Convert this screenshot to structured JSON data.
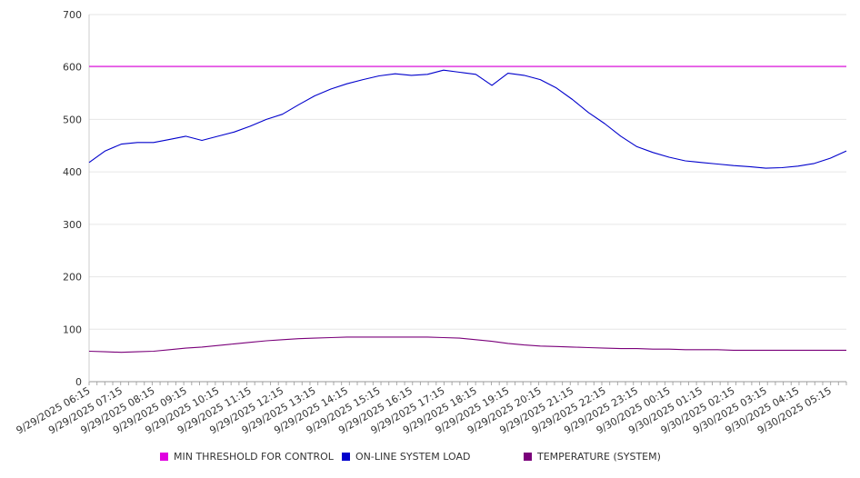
{
  "chart_data": {
    "type": "line",
    "ylim": [
      0,
      700
    ],
    "y_ticks": [
      0,
      100,
      200,
      300,
      400,
      500,
      600,
      700
    ],
    "grid": "horizontal",
    "legend_position": "bottom",
    "x_tick_labels": [
      "9/29/2025 06:15",
      "9/29/2025 07:15",
      "9/29/2025 08:15",
      "9/29/2025 09:15",
      "9/29/2025 10:15",
      "9/29/2025 11:15",
      "9/29/2025 12:15",
      "9/29/2025 13:15",
      "9/29/2025 14:15",
      "9/29/2025 15:15",
      "9/29/2025 16:15",
      "9/29/2025 17:15",
      "9/29/2025 18:15",
      "9/29/2025 19:15",
      "9/29/2025 20:15",
      "9/29/2025 21:15",
      "9/29/2025 22:15",
      "9/29/2025 23:15",
      "9/30/2025 00:15",
      "9/30/2025 01:15",
      "9/30/2025 02:15",
      "9/30/2025 03:15",
      "9/30/2025 04:15",
      "9/30/2025 05:15"
    ],
    "x": [
      "9/29/2025 06:15",
      "9/29/2025 06:45",
      "9/29/2025 07:15",
      "9/29/2025 07:45",
      "9/29/2025 08:15",
      "9/29/2025 08:45",
      "9/29/2025 09:15",
      "9/29/2025 09:45",
      "9/29/2025 10:15",
      "9/29/2025 10:45",
      "9/29/2025 11:15",
      "9/29/2025 11:45",
      "9/29/2025 12:15",
      "9/29/2025 12:45",
      "9/29/2025 13:15",
      "9/29/2025 13:45",
      "9/29/2025 14:15",
      "9/29/2025 14:45",
      "9/29/2025 15:15",
      "9/29/2025 15:45",
      "9/29/2025 16:15",
      "9/29/2025 16:45",
      "9/29/2025 17:15",
      "9/29/2025 17:45",
      "9/29/2025 18:15",
      "9/29/2025 18:45",
      "9/29/2025 19:15",
      "9/29/2025 19:45",
      "9/29/2025 20:15",
      "9/29/2025 20:45",
      "9/29/2025 21:15",
      "9/29/2025 21:45",
      "9/29/2025 22:15",
      "9/29/2025 22:45",
      "9/29/2025 23:15",
      "9/29/2025 23:45",
      "9/30/2025 00:15",
      "9/30/2025 00:45",
      "9/30/2025 01:15",
      "9/30/2025 01:45",
      "9/30/2025 02:15",
      "9/30/2025 02:45",
      "9/30/2025 03:15",
      "9/30/2025 03:45",
      "9/30/2025 04:15",
      "9/30/2025 04:45",
      "9/30/2025 05:15",
      "9/30/2025 05:45"
    ],
    "series": [
      {
        "name": "MIN THRESHOLD FOR CONTROL",
        "color": "#e000e0",
        "values": [
          601,
          601,
          601,
          601,
          601,
          601,
          601,
          601,
          601,
          601,
          601,
          601,
          601,
          601,
          601,
          601,
          601,
          601,
          601,
          601,
          601,
          601,
          601,
          601,
          601,
          601,
          601,
          601,
          601,
          601,
          601,
          601,
          601,
          601,
          601,
          601,
          601,
          601,
          601,
          601,
          601,
          601,
          601,
          601,
          601,
          601,
          601,
          601
        ]
      },
      {
        "name": "ON-LINE SYSTEM LOAD",
        "color": "#0000cc",
        "values": [
          418,
          440,
          453,
          456,
          456,
          462,
          468,
          460,
          468,
          476,
          487,
          500,
          510,
          528,
          545,
          558,
          568,
          576,
          583,
          587,
          584,
          586,
          594,
          590,
          586,
          565,
          588,
          584,
          576,
          560,
          538,
          513,
          492,
          468,
          448,
          437,
          428,
          421,
          418,
          415,
          412,
          410,
          407,
          408,
          411,
          416,
          426,
          440
        ]
      },
      {
        "name": "TEMPERATURE (SYSTEM)",
        "color": "#7a007a",
        "values": [
          58,
          57,
          56,
          57,
          58,
          61,
          64,
          66,
          69,
          72,
          75,
          78,
          80,
          82,
          83,
          84,
          85,
          85,
          85,
          85,
          85,
          85,
          84,
          83,
          80,
          77,
          73,
          70,
          68,
          67,
          66,
          65,
          64,
          63,
          63,
          62,
          62,
          61,
          61,
          61,
          60,
          60,
          60,
          60,
          60,
          60,
          60,
          60
        ]
      }
    ]
  }
}
